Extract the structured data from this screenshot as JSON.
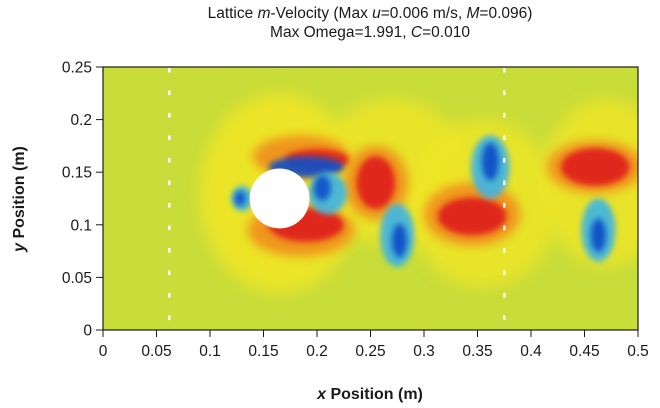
{
  "chart_data": {
    "type": "heatmap",
    "title": {
      "line1_prefix": "Lattice ",
      "line1_var": "m",
      "line1_mid": "-Velocity (Max ",
      "line1_u": "u",
      "line1_eq": "=0.006 m/s, ",
      "line1_M": "M",
      "line1_end": "=0.096)",
      "line2_prefix": "Max Omega=1.991, ",
      "line2_C": "C",
      "line2_end": "=0.010"
    },
    "xlabel": {
      "var": "x",
      "text": " Position (m)"
    },
    "ylabel": {
      "var": "y",
      "text": " Position (m)"
    },
    "xlim": [
      0,
      0.5
    ],
    "ylim": [
      0,
      0.25
    ],
    "x_ticks": [
      "0",
      "0.05",
      "0.1",
      "0.15",
      "0.2",
      "0.25",
      "0.3",
      "0.35",
      "0.4",
      "0.45",
      "0.5"
    ],
    "y_ticks": [
      "0",
      "0.05",
      "0.1",
      "0.15",
      "0.2",
      "0.25"
    ],
    "cylinder": {
      "cx": 0.165,
      "cy": 0.125,
      "r": 0.028
    },
    "probe_lines_x": [
      0.062,
      0.375
    ],
    "colors": {
      "background": "#c8dc3a",
      "white": "#ffffff",
      "red": "#e0201c",
      "orange": "#f08c1c",
      "yellow": "#f0e628",
      "blue": "#1050c8",
      "cyan": "#3cb4e6"
    }
  }
}
